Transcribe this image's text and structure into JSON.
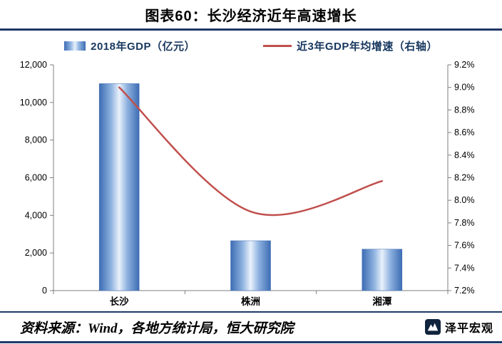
{
  "title": "图表60：长沙经济近年高速增长",
  "legend": [
    {
      "type": "bar",
      "label": "2018年GDP（亿元）"
    },
    {
      "type": "line",
      "label": "近3年GDP年均增速（右轴）"
    }
  ],
  "footer": {
    "source": "资料来源：Wind，各地方统计局，恒大研究院",
    "brand": "泽平宏观"
  },
  "colors": {
    "accent": "#1F3864",
    "legend_text": "#17375E",
    "bar_dark": "#3D6CB3",
    "bar_mid": "#8FB3E0",
    "bar_light": "#E9F1FB",
    "line": "#C0504D",
    "axis": "#7F7F7F",
    "tick_text": "#000000"
  },
  "chart_data": {
    "type": "bar",
    "subtype": "bar+line-combo",
    "title": "图表60：长沙经济近年高速增长",
    "categories": [
      "长沙",
      "株洲",
      "湘潭"
    ],
    "series": [
      {
        "name": "2018年GDP（亿元）",
        "type": "bar",
        "axis": "left",
        "values": [
          11000,
          2650,
          2200
        ]
      },
      {
        "name": "近3年GDP年均增速（右轴）",
        "type": "line",
        "axis": "right",
        "values": [
          9.0,
          7.9,
          8.17
        ]
      }
    ],
    "left_axis": {
      "min": 0,
      "max": 12000,
      "step": 2000,
      "tick_labels": [
        "0",
        "2,000",
        "4,000",
        "6,000",
        "8,000",
        "10,000",
        "12,000"
      ]
    },
    "right_axis": {
      "min": 7.2,
      "max": 9.2,
      "step": 0.2,
      "tick_labels": [
        "7.2%",
        "7.4%",
        "7.6%",
        "7.8%",
        "8.0%",
        "8.2%",
        "8.4%",
        "8.6%",
        "8.8%",
        "9.0%",
        "9.2%"
      ]
    },
    "grid": false,
    "legend_position": "top"
  }
}
